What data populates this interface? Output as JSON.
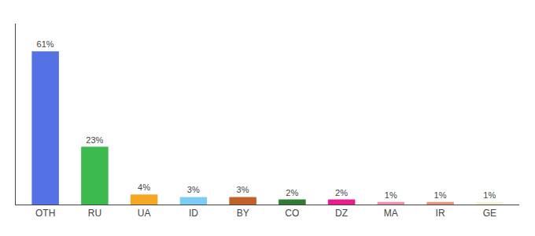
{
  "chart_data": {
    "type": "bar",
    "categories": [
      "OTH",
      "RU",
      "UA",
      "ID",
      "BY",
      "CO",
      "DZ",
      "MA",
      "IR",
      "GE"
    ],
    "values": [
      61,
      23,
      4,
      3,
      3,
      2,
      2,
      1,
      1,
      1
    ],
    "value_labels": [
      "61%",
      "23%",
      "4%",
      "3%",
      "3%",
      "2%",
      "2%",
      "1%",
      "1%",
      "1%"
    ],
    "colors": [
      "#5472e4",
      "#3dba4e",
      "#f5a623",
      "#7ecbf5",
      "#c0622a",
      "#2e7d32",
      "#e91e8c",
      "#f48fb1",
      "#e8967a",
      "#f5f0d8"
    ],
    "ylim": [
      0,
      72
    ],
    "data_labels": true,
    "tick_labels": "x",
    "grid": false
  }
}
